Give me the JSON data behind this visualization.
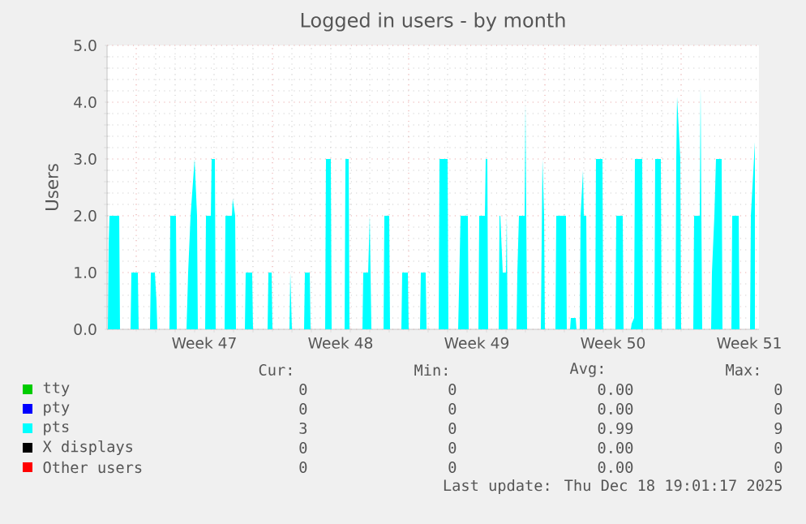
{
  "chart_data": {
    "type": "area",
    "title": "Logged in users - by month",
    "ylabel": "Users",
    "xlim": [
      "2025-11-15T12:00",
      "2025-12-19T00:00"
    ],
    "ylim": [
      0,
      5
    ],
    "xticks": [
      {
        "value": "2025-11-17T00:00",
        "label": null
      },
      {
        "value": "2025-11-20T12:00",
        "label": "Week 47"
      },
      {
        "value": "2025-11-24T00:00",
        "label": null
      },
      {
        "value": "2025-11-27T12:00",
        "label": "Week 48"
      },
      {
        "value": "2025-12-01T00:00",
        "label": null
      },
      {
        "value": "2025-12-04T12:00",
        "label": "Week 49"
      },
      {
        "value": "2025-12-08T00:00",
        "label": null
      },
      {
        "value": "2025-12-11T12:00",
        "label": "Week 50"
      },
      {
        "value": "2025-12-15T00:00",
        "label": null
      },
      {
        "value": "2025-12-18T12:00",
        "label": "Week 51"
      }
    ],
    "yticks": [
      {
        "value": 0,
        "label": "0.0"
      },
      {
        "value": 1,
        "label": "1.0"
      },
      {
        "value": 2,
        "label": "2.0"
      },
      {
        "value": 3,
        "label": "3.0"
      },
      {
        "value": 4,
        "label": "4.0"
      },
      {
        "value": 5,
        "label": "5.0"
      }
    ],
    "grid": true,
    "legend": "bottom",
    "series": [
      {
        "name": "tty",
        "color": "#00cc00"
      },
      {
        "name": "pty",
        "color": "#0000ff"
      },
      {
        "name": "pts",
        "color": "#00ffff",
        "x": [
          "2025-11-15T13:00",
          "2025-11-15T14:00",
          "2025-11-15T15:00",
          "2025-11-16T03:00",
          "2025-11-16T04:00",
          "2025-11-16T17:00",
          "2025-11-16T18:00",
          "2025-11-17T02:00",
          "2025-11-17T03:00",
          "2025-11-17T17:00",
          "2025-11-17T18:00",
          "2025-11-17T23:00",
          "2025-11-18T01:00",
          "2025-11-18T02:00",
          "2025-11-18T17:00",
          "2025-11-18T18:00",
          "2025-11-19T01:00",
          "2025-11-19T02:00",
          "2025-11-19T14:00",
          "2025-11-19T16:00",
          "2025-11-19T19:00",
          "2025-11-20T00:00",
          "2025-11-20T03:00",
          "2025-11-20T04:00",
          "2025-11-20T13:00",
          "2025-11-20T14:00",
          "2025-11-20T20:00",
          "2025-11-20T21:00",
          "2025-11-21T01:00",
          "2025-11-21T02:00",
          "2025-11-21T13:00",
          "2025-11-21T14:00",
          "2025-11-21T22:00",
          "2025-11-21T23:00",
          "2025-11-22T02:00",
          "2025-11-22T03:00",
          "2025-11-22T14:00",
          "2025-11-22T15:00",
          "2025-11-22T23:00",
          "2025-11-23T00:00",
          "2025-11-23T18:00",
          "2025-11-23T19:00",
          "2025-11-23T23:00",
          "2025-11-24T00:00",
          "2025-11-24T21:00",
          "2025-11-24T22:00",
          "2025-11-24T23:00",
          "2025-11-25T00:00",
          "2025-11-25T15:00",
          "2025-11-25T16:00",
          "2025-11-25T22:00",
          "2025-11-25T23:00",
          "2025-11-26T17:00",
          "2025-11-26T18:00",
          "2025-11-27T00:00",
          "2025-11-27T01:00",
          "2025-11-27T17:00",
          "2025-11-27T18:00",
          "2025-11-27T22:00",
          "2025-11-27T23:00",
          "2025-11-28T15:00",
          "2025-11-28T16:00",
          "2025-11-28T22:00",
          "2025-11-29T00:00",
          "2025-11-29T01:00",
          "2025-11-29T02:00",
          "2025-11-29T17:00",
          "2025-11-29T18:00",
          "2025-11-30T00:00",
          "2025-11-30T01:00",
          "2025-11-30T15:00",
          "2025-11-30T16:00",
          "2025-11-30T23:00",
          "2025-12-01T00:00",
          "2025-12-01T14:00",
          "2025-12-01T15:00",
          "2025-12-01T21:00",
          "2025-12-01T22:00",
          "2025-12-02T13:00",
          "2025-12-02T14:00",
          "2025-12-03T00:00",
          "2025-12-03T01:00",
          "2025-12-03T13:00",
          "2025-12-03T16:00",
          "2025-12-04T01:00",
          "2025-12-04T02:00",
          "2025-12-04T14:00",
          "2025-12-04T15:00",
          "2025-12-04T22:00",
          "2025-12-04T23:00",
          "2025-12-05T01:00",
          "2025-12-05T02:00",
          "2025-12-05T15:00",
          "2025-12-05T16:00",
          "2025-12-05T17:00",
          "2025-12-05T20:00",
          "2025-12-06T00:00",
          "2025-12-06T01:00",
          "2025-12-06T02:00",
          "2025-12-06T13:00",
          "2025-12-06T14:00",
          "2025-12-06T16:00",
          "2025-12-06T23:00",
          "2025-12-07T00:00",
          "2025-12-07T01:00",
          "2025-12-07T02:00",
          "2025-12-07T19:00",
          "2025-12-07T21:00",
          "2025-12-07T23:00",
          "2025-12-08T00:00",
          "2025-12-08T13:00",
          "2025-12-08T14:00",
          "2025-12-09T02:00",
          "2025-12-09T03:00",
          "2025-12-09T07:00",
          "2025-12-09T08:00",
          "2025-12-09T14:00",
          "2025-12-09T15:00",
          "2025-12-09T19:00",
          "2025-12-09T20:00",
          "2025-12-09T23:00",
          "2025-12-10T00:00",
          "2025-12-10T03:00",
          "2025-12-10T04:00",
          "2025-12-10T14:00",
          "2025-12-10T15:00",
          "2025-12-10T23:00",
          "2025-12-11T00:00",
          "2025-12-11T15:00",
          "2025-12-11T16:00",
          "2025-12-12T00:00",
          "2025-12-12T01:00",
          "2025-12-12T10:00",
          "2025-12-12T11:00",
          "2025-12-12T14:00",
          "2025-12-12T15:00",
          "2025-12-13T00:00",
          "2025-12-13T01:00",
          "2025-12-13T15:00",
          "2025-12-13T16:00",
          "2025-12-13T23:00",
          "2025-12-14T00:00",
          "2025-12-14T17:00",
          "2025-12-14T18:00",
          "2025-12-14T19:00",
          "2025-12-14T23:00",
          "2025-12-15T00:00",
          "2025-12-15T15:00",
          "2025-12-15T16:00",
          "2025-12-15T23:00",
          "2025-12-16T00:00",
          "2025-12-16T01:00",
          "2025-12-16T02:00",
          "2025-12-16T13:00",
          "2025-12-16T14:00",
          "2025-12-16T17:00",
          "2025-12-16T19:00",
          "2025-12-17T02:00",
          "2025-12-17T03:00",
          "2025-12-17T14:00",
          "2025-12-17T15:00",
          "2025-12-17T23:00",
          "2025-12-18T00:00",
          "2025-12-18T13:00",
          "2025-12-18T14:00",
          "2025-12-18T19:00"
        ],
        "values": [
          0,
          1.5,
          2,
          2,
          0,
          0,
          1,
          1,
          0,
          0,
          1,
          1,
          0.5,
          0,
          0,
          2,
          2,
          0,
          0,
          1,
          2,
          3,
          2,
          0,
          0,
          2,
          2,
          3,
          3,
          0,
          0,
          2,
          2,
          2.3,
          2,
          0,
          0,
          1,
          1,
          0,
          0,
          1,
          1,
          0,
          0,
          1,
          0.5,
          0,
          0,
          1,
          1,
          0,
          0,
          3,
          3,
          0,
          0,
          3,
          3,
          0,
          0,
          1,
          1,
          2,
          1,
          0,
          0,
          2,
          2,
          0,
          0,
          1,
          1,
          0,
          0,
          1,
          1,
          0,
          0,
          3,
          3,
          0,
          0,
          2,
          2,
          0,
          0,
          2,
          2,
          3,
          3,
          0,
          0,
          2,
          2,
          1,
          1,
          2,
          0,
          0,
          1,
          2,
          2,
          4,
          2,
          0,
          0,
          3,
          2,
          0,
          0,
          2,
          2,
          0,
          0,
          0.2,
          0.2,
          0,
          0,
          2,
          2.8,
          2,
          2,
          0,
          0,
          3,
          3,
          0,
          0,
          2,
          2,
          0,
          0,
          0.1,
          0.2,
          3,
          3,
          0,
          0,
          3,
          3,
          0,
          0,
          3,
          4.1,
          3,
          0,
          0,
          2,
          2,
          4.3,
          2,
          0,
          0,
          1,
          2,
          3,
          3,
          0,
          0,
          2,
          2,
          0,
          0,
          2,
          3.3
        ]
      },
      {
        "name": "X displays",
        "color": "#000000"
      },
      {
        "name": "Other users",
        "color": "#ff0000"
      }
    ],
    "annotations": [
      "Cur:",
      "Min:",
      "Avg:",
      "Max:",
      "0",
      "0",
      "0.00",
      "0",
      "0",
      "0",
      "0.00",
      "0",
      "3",
      "0",
      "0.99",
      "9",
      "0",
      "0",
      "0.00",
      "0",
      "0",
      "0",
      "0.00",
      "0",
      "Last update: Thu Dec 18 19:01:17 2025"
    ]
  }
}
